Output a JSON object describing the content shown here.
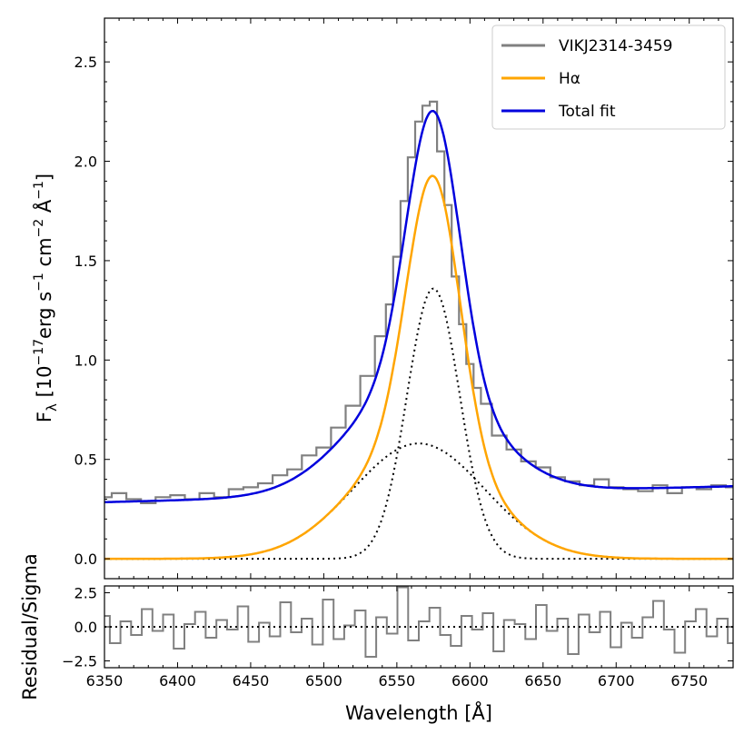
{
  "chart_data": [
    {
      "panel": "main",
      "type": "line",
      "xlabel": "Wavelength [Å]",
      "ylabel": "F_λ [10^-17 erg s^-1 cm^-2 Å^-1]",
      "ylabel_parts": {
        "f": "F",
        "lambda": "λ",
        "bracket_open": " [10",
        "exp1": "−17",
        "erg": "erg s",
        "exp2": "−1",
        "cm": " cm",
        "exp3": "−2",
        "ang": " Å",
        "exp4": "−1",
        "bracket_close": "]"
      },
      "xlim": [
        6350,
        6780
      ],
      "ylim": [
        -0.1,
        2.72
      ],
      "xticks": [
        6350,
        6400,
        6450,
        6500,
        6550,
        6600,
        6650,
        6700,
        6750
      ],
      "yticks": [
        0.0,
        0.5,
        1.0,
        1.5,
        2.0,
        2.5
      ],
      "ytick_labels": [
        "0.0",
        "0.5",
        "1.0",
        "1.5",
        "2.0",
        "2.5"
      ],
      "legend": {
        "position": "upper-right",
        "entries": [
          "VIKJ2314-3459",
          "Hα",
          "Total fit"
        ]
      },
      "series": [
        {
          "name": "VIKJ2314-3459",
          "style": "step",
          "color": "#808080",
          "x": [
            6350,
            6360,
            6370,
            6380,
            6390,
            6400,
            6410,
            6420,
            6430,
            6440,
            6450,
            6460,
            6470,
            6480,
            6490,
            6500,
            6510,
            6520,
            6530,
            6540,
            6545,
            6550,
            6555,
            6560,
            6565,
            6570,
            6575,
            6580,
            6585,
            6590,
            6595,
            6600,
            6605,
            6610,
            6620,
            6630,
            6640,
            6650,
            6660,
            6670,
            6680,
            6690,
            6700,
            6710,
            6720,
            6730,
            6740,
            6750,
            6760,
            6770,
            6780
          ],
          "y": [
            0.31,
            0.33,
            0.3,
            0.28,
            0.31,
            0.32,
            0.3,
            0.33,
            0.31,
            0.35,
            0.36,
            0.38,
            0.42,
            0.45,
            0.52,
            0.56,
            0.66,
            0.77,
            0.92,
            1.12,
            1.28,
            1.52,
            1.8,
            2.02,
            2.2,
            2.28,
            2.3,
            2.05,
            1.78,
            1.42,
            1.18,
            0.98,
            0.86,
            0.78,
            0.62,
            0.55,
            0.49,
            0.46,
            0.41,
            0.39,
            0.37,
            0.4,
            0.36,
            0.35,
            0.34,
            0.37,
            0.33,
            0.36,
            0.35,
            0.37,
            0.36
          ]
        },
        {
          "name": "Hα",
          "style": "line",
          "color": "#ffa500"
        },
        {
          "name": "Total fit",
          "style": "line",
          "color": "#0000dd"
        },
        {
          "style": "dotted",
          "color": "#000000",
          "component": "narrow"
        },
        {
          "style": "dotted",
          "color": "#000000",
          "component": "broad"
        }
      ]
    },
    {
      "panel": "residual",
      "type": "line",
      "ylabel": "Residual/Sigma",
      "xlabel": "Wavelength [Å]",
      "xlim": [
        6350,
        6780
      ],
      "ylim": [
        -3.0,
        3.0
      ],
      "yticks": [
        -2.5,
        0.0,
        2.5
      ],
      "ytick_labels": [
        "−2.5",
        "0.0",
        "2.5"
      ],
      "series": [
        {
          "style": "step",
          "color": "#808080",
          "y": [
            0.8,
            -1.2,
            0.4,
            -0.6,
            1.3,
            -0.3,
            0.9,
            -1.6,
            0.2,
            1.1,
            -0.8,
            0.5,
            -0.2,
            1.5,
            -1.1,
            0.3,
            -0.7,
            1.8,
            -0.4,
            0.6,
            -1.3,
            2.0,
            -0.9,
            0.1,
            1.2,
            -2.2,
            0.7,
            -0.5,
            2.9,
            -1.0,
            0.4,
            1.4,
            -0.6,
            -1.4,
            0.8,
            -0.2,
            1.0,
            -1.8,
            0.5,
            0.2,
            -0.9,
            1.6,
            -0.3,
            0.6,
            -2.0,
            0.9,
            -0.4,
            1.1,
            -1.5,
            0.3,
            -0.8,
            0.7,
            1.9,
            -0.2,
            -1.9,
            0.4,
            1.3,
            -0.7,
            0.6,
            -1.2
          ]
        },
        {
          "style": "dotted",
          "color": "#000000",
          "y": 0.0
        }
      ]
    }
  ]
}
